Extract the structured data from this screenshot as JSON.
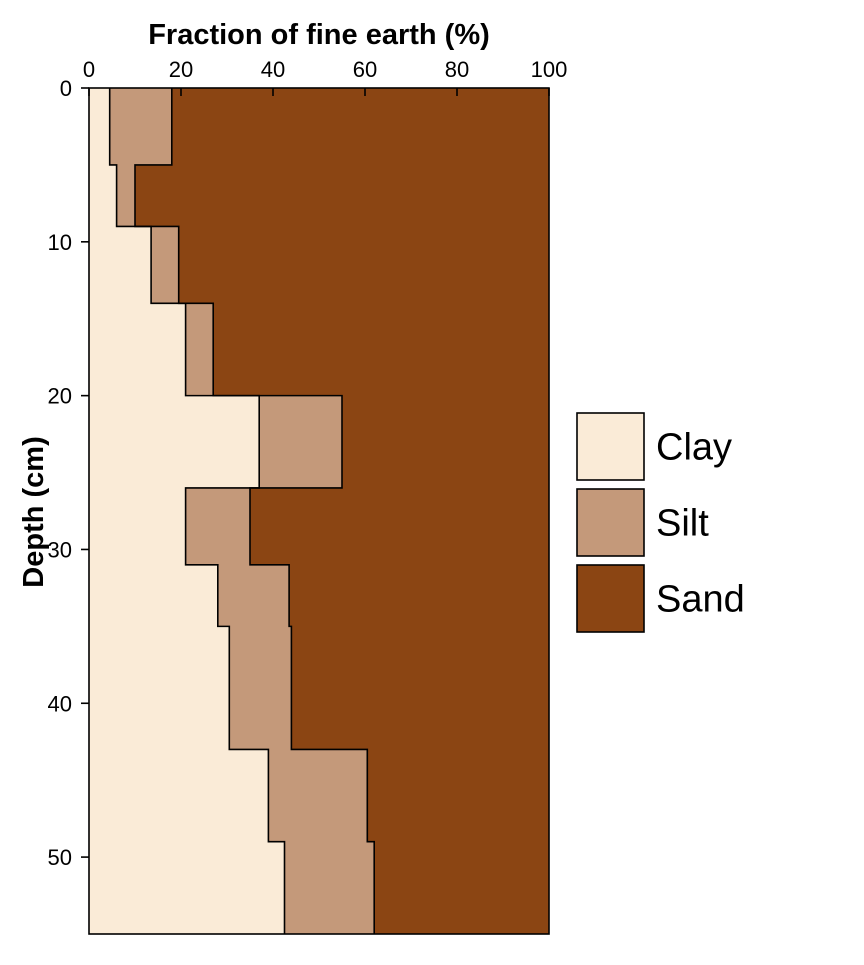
{
  "chart_data": {
    "type": "area",
    "orientation": "depth-profile",
    "x_axis": {
      "label": "Fraction of fine earth (%)",
      "position": "top",
      "range": [
        0,
        100
      ],
      "ticks": [
        0,
        20,
        40,
        60,
        80,
        100
      ]
    },
    "y_axis": {
      "label": "Depth (cm)",
      "inverted": true,
      "range": [
        0,
        55
      ],
      "ticks": [
        0,
        10,
        20,
        30,
        40,
        50
      ]
    },
    "grid": false,
    "legend_position": "right",
    "layers": [
      {
        "depth_top": 0,
        "depth_bottom": 5,
        "clay": 4.5,
        "silt": 13.5,
        "sand": 82.0
      },
      {
        "depth_top": 5,
        "depth_bottom": 9,
        "clay": 6.0,
        "silt": 4.0,
        "sand": 90.0
      },
      {
        "depth_top": 9,
        "depth_bottom": 14,
        "clay": 13.5,
        "silt": 6.0,
        "sand": 80.5
      },
      {
        "depth_top": 14,
        "depth_bottom": 20,
        "clay": 21.0,
        "silt": 6.0,
        "sand": 73.0
      },
      {
        "depth_top": 20,
        "depth_bottom": 26,
        "clay": 37.0,
        "silt": 18.0,
        "sand": 45.0
      },
      {
        "depth_top": 26,
        "depth_bottom": 31,
        "clay": 21.0,
        "silt": 14.0,
        "sand": 65.0
      },
      {
        "depth_top": 31,
        "depth_bottom": 35,
        "clay": 28.0,
        "silt": 15.5,
        "sand": 56.5
      },
      {
        "depth_top": 35,
        "depth_bottom": 43,
        "clay": 30.5,
        "silt": 13.5,
        "sand": 56.0
      },
      {
        "depth_top": 43,
        "depth_bottom": 49,
        "clay": 39.0,
        "silt": 21.5,
        "sand": 39.5
      },
      {
        "depth_top": 49,
        "depth_bottom": 55,
        "clay": 42.5,
        "silt": 19.5,
        "sand": 38.0
      }
    ],
    "series": [
      {
        "name": "Clay",
        "key": "clay",
        "color": "#FAEBD7"
      },
      {
        "name": "Silt",
        "key": "silt",
        "color": "#C4997A"
      },
      {
        "name": "Sand",
        "key": "sand",
        "color": "#8B4513"
      }
    ]
  }
}
